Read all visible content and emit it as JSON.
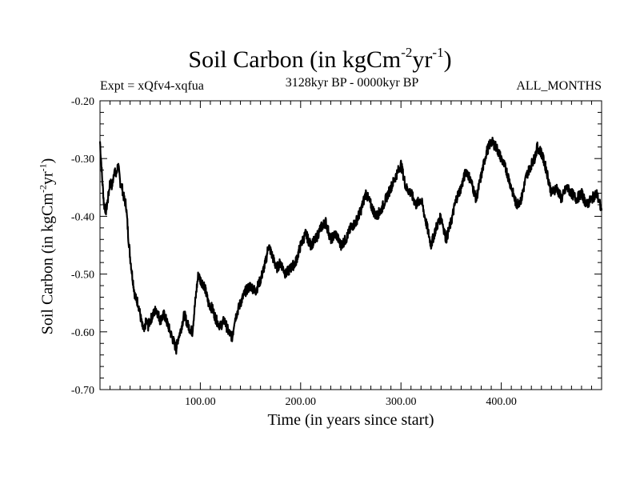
{
  "chart_data": {
    "type": "line",
    "title_main": "Soil Carbon (in kgCm",
    "title_sup1": "-2",
    "title_mid": "yr",
    "title_sup2": "-1",
    "title_end": ")",
    "subtitle_left": "Expt = xQfv4-xqfua",
    "subtitle_center": "3128kyr BP - 0000kyr BP",
    "subtitle_right": "ALL_MONTHS",
    "xlabel": "Time (in years since start)",
    "ylabel_main": "Soil Carbon (in kgCm",
    "ylabel_sup1": "-2",
    "ylabel_mid": "yr",
    "ylabel_sup2": "-1",
    "ylabel_end": ")",
    "xlim": [
      0,
      500
    ],
    "ylim": [
      -0.7,
      -0.2
    ],
    "x_ticks": [
      100,
      200,
      300,
      400
    ],
    "x_tick_labels": [
      "100.00",
      "200.00",
      "300.00",
      "400.00"
    ],
    "y_ticks": [
      -0.7,
      -0.6,
      -0.5,
      -0.4,
      -0.3,
      -0.2
    ],
    "y_tick_labels": [
      "-0.70",
      "-0.60",
      "-0.50",
      "-0.40",
      "-0.30",
      "-0.20"
    ],
    "grid": false,
    "series": [
      {
        "name": "Soil Carbon",
        "color": "#000000",
        "x": [
          0,
          2,
          4,
          6,
          8,
          10,
          12,
          14,
          16,
          18,
          20,
          22,
          24,
          26,
          28,
          30,
          32,
          35,
          38,
          40,
          42,
          44,
          46,
          48,
          50,
          53,
          56,
          60,
          64,
          68,
          72,
          74,
          76,
          78,
          80,
          84,
          88,
          92,
          96,
          98,
          100,
          104,
          108,
          112,
          116,
          120,
          124,
          128,
          132,
          134,
          136,
          140,
          145,
          150,
          155,
          160,
          165,
          168,
          172,
          176,
          180,
          185,
          190,
          195,
          200,
          205,
          210,
          215,
          220,
          225,
          230,
          235,
          240,
          245,
          250,
          255,
          260,
          265,
          270,
          275,
          280,
          285,
          290,
          295,
          300,
          305,
          310,
          315,
          320,
          325,
          330,
          335,
          340,
          345,
          350,
          355,
          360,
          365,
          370,
          375,
          380,
          385,
          390,
          395,
          400,
          405,
          410,
          415,
          420,
          425,
          430,
          433,
          436,
          440,
          445,
          450,
          455,
          460,
          465,
          470,
          475,
          480,
          485,
          490,
          495,
          500
        ],
        "values": [
          -0.27,
          -0.33,
          -0.38,
          -0.39,
          -0.37,
          -0.34,
          -0.35,
          -0.32,
          -0.33,
          -0.31,
          -0.34,
          -0.35,
          -0.37,
          -0.38,
          -0.43,
          -0.47,
          -0.5,
          -0.54,
          -0.55,
          -0.57,
          -0.59,
          -0.6,
          -0.58,
          -0.59,
          -0.58,
          -0.57,
          -0.56,
          -0.58,
          -0.57,
          -0.59,
          -0.61,
          -0.62,
          -0.63,
          -0.61,
          -0.6,
          -0.57,
          -0.59,
          -0.6,
          -0.53,
          -0.5,
          -0.51,
          -0.52,
          -0.55,
          -0.56,
          -0.58,
          -0.59,
          -0.58,
          -0.6,
          -0.61,
          -0.58,
          -0.57,
          -0.55,
          -0.53,
          -0.52,
          -0.53,
          -0.51,
          -0.48,
          -0.45,
          -0.47,
          -0.49,
          -0.48,
          -0.5,
          -0.49,
          -0.48,
          -0.45,
          -0.43,
          -0.45,
          -0.44,
          -0.42,
          -0.41,
          -0.44,
          -0.43,
          -0.45,
          -0.44,
          -0.42,
          -0.41,
          -0.39,
          -0.36,
          -0.38,
          -0.4,
          -0.39,
          -0.37,
          -0.35,
          -0.33,
          -0.31,
          -0.35,
          -0.36,
          -0.38,
          -0.37,
          -0.41,
          -0.45,
          -0.42,
          -0.4,
          -0.44,
          -0.41,
          -0.37,
          -0.35,
          -0.32,
          -0.34,
          -0.37,
          -0.33,
          -0.29,
          -0.27,
          -0.28,
          -0.3,
          -0.32,
          -0.35,
          -0.38,
          -0.37,
          -0.33,
          -0.31,
          -0.3,
          -0.28,
          -0.29,
          -0.32,
          -0.36,
          -0.35,
          -0.37,
          -0.35,
          -0.36,
          -0.37,
          -0.36,
          -0.38,
          -0.37,
          -0.36,
          -0.39
        ]
      }
    ]
  }
}
